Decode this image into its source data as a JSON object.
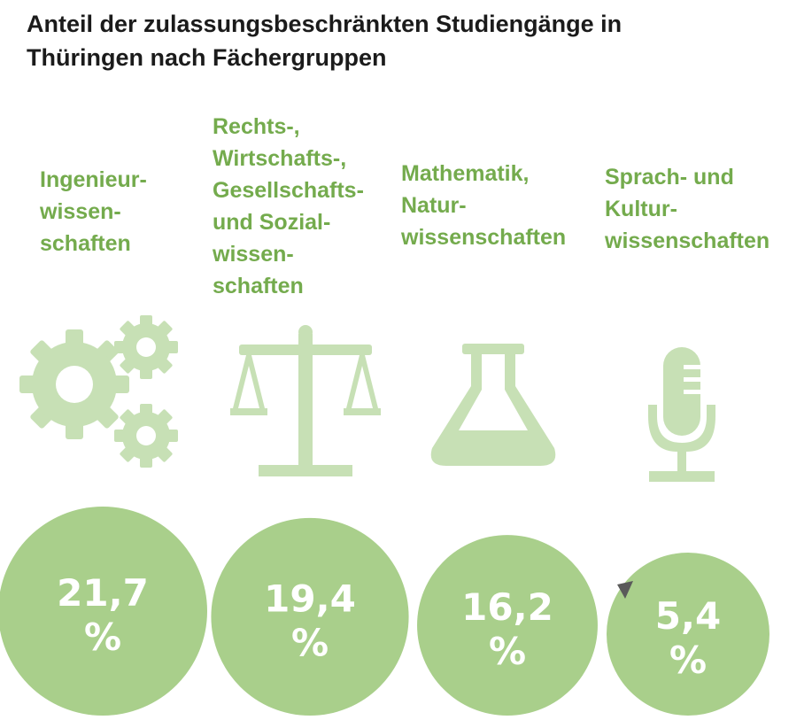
{
  "title": "Anteil der zulassungsbeschränkten Studiengänge in\nThüringen nach Fächergruppen",
  "colors": {
    "label": "#74ab4d",
    "icon": "#c7e0b5",
    "bubble": "#a9cf8b",
    "title": "#1b1b1b"
  },
  "chart_data": {
    "type": "bubble",
    "title": "Anteil der zulassungsbeschränkten Studiengänge in Thüringen nach Fächergruppen",
    "unit": "%",
    "categories": [
      "Ingenieurwissenschaften",
      "Rechts-, Wirtschafts-, Gesellschafts- und Sozialwissenschaften",
      "Mathematik, Naturwissenschaften",
      "Sprach- und Kulturwissenschaften"
    ],
    "values": [
      21.7,
      19.4,
      16.2,
      5.4
    ],
    "value_labels": [
      "21,7",
      "19,4",
      "16,2",
      "5,4"
    ],
    "percent_sign": "%"
  },
  "category_labels": [
    "Ingenieur-\nwissen-\nschaften",
    "Rechts-,\nWirtschafts-,\nGesellschafts-\nund Sozial-\nwissen-\nschaften",
    "Mathematik,\nNatur-\nwissenschaften",
    "Sprach- und\nKultur-\nwissenschaften"
  ],
  "icons": [
    "gears-icon",
    "scales-icon",
    "flask-icon",
    "microphone-icon"
  ]
}
